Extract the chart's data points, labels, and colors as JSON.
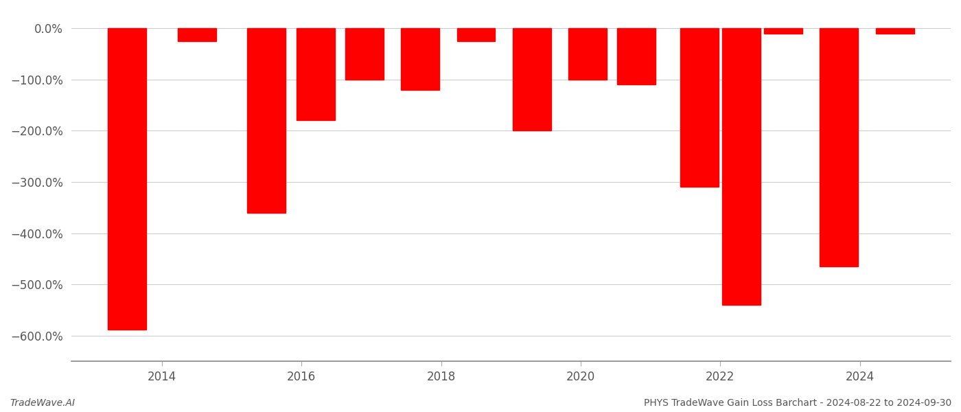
{
  "bar_positions": [
    2013.5,
    2014.5,
    2015.5,
    2016.2,
    2016.9,
    2017.7,
    2018.5,
    2019.3,
    2020.1,
    2020.8,
    2021.7,
    2022.3,
    2022.9,
    2023.7,
    2024.5
  ],
  "bar_values": [
    -5.88,
    -0.25,
    -3.6,
    -1.8,
    -1.0,
    -1.2,
    -0.25,
    -2.0,
    -1.0,
    -1.1,
    -3.1,
    -5.4,
    -0.1,
    -4.65,
    -0.1
  ],
  "bar_width": 0.55,
  "bar_color": "#ff0000",
  "background_color": "#ffffff",
  "grid_color": "#cccccc",
  "ylim": [
    -6.5,
    0.35
  ],
  "yticks": [
    0.0,
    -1.0,
    -2.0,
    -3.0,
    -4.0,
    -5.0,
    -6.0
  ],
  "xlim": [
    2012.7,
    2025.3
  ],
  "xticks": [
    2014,
    2016,
    2018,
    2020,
    2022,
    2024
  ],
  "tick_fontsize": 12,
  "footer_left": "TradeWave.AI",
  "footer_right": "PHYS TradeWave Gain Loss Barchart - 2024-08-22 to 2024-09-30",
  "footer_fontsize": 10
}
